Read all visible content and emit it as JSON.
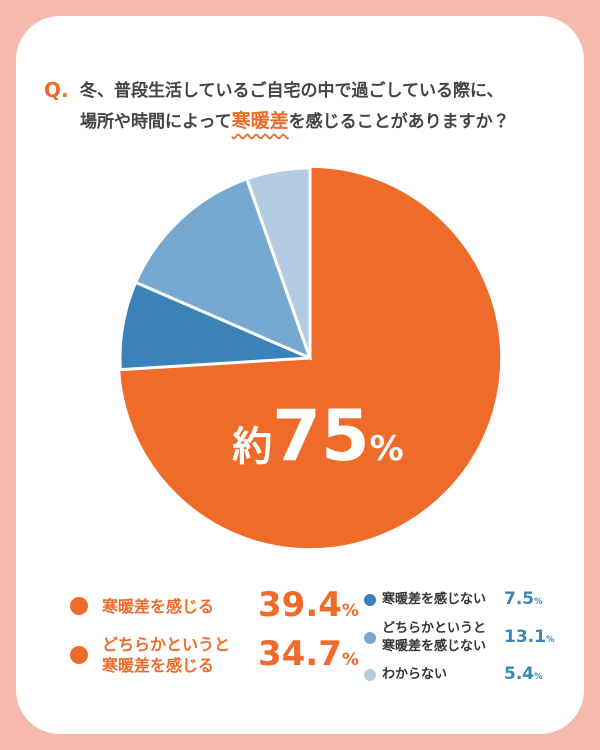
{
  "chart_data": {
    "type": "pie",
    "question_mark": "Q.",
    "title": [
      "冬、普段生活しているご自宅の中で過ごしている際に、",
      "場所や時間によって",
      "寒暖差",
      "を感じることがありますか？"
    ],
    "center_label": [
      "約",
      "75",
      "%"
    ],
    "categories": [
      "寒暖差を感じる",
      "どちらかというと\n寒暖差を感じる",
      "寒暖差を感じない",
      "どちらかというと\n寒暖差を感じない",
      "わからない"
    ],
    "values": [
      39.4,
      34.7,
      7.5,
      13.1,
      5.4
    ],
    "value_unit": "%",
    "colors": [
      "#ef6b2a",
      "#ef6b2a",
      "#3b82b8",
      "#77a8cf",
      "#b3cce4"
    ]
  }
}
